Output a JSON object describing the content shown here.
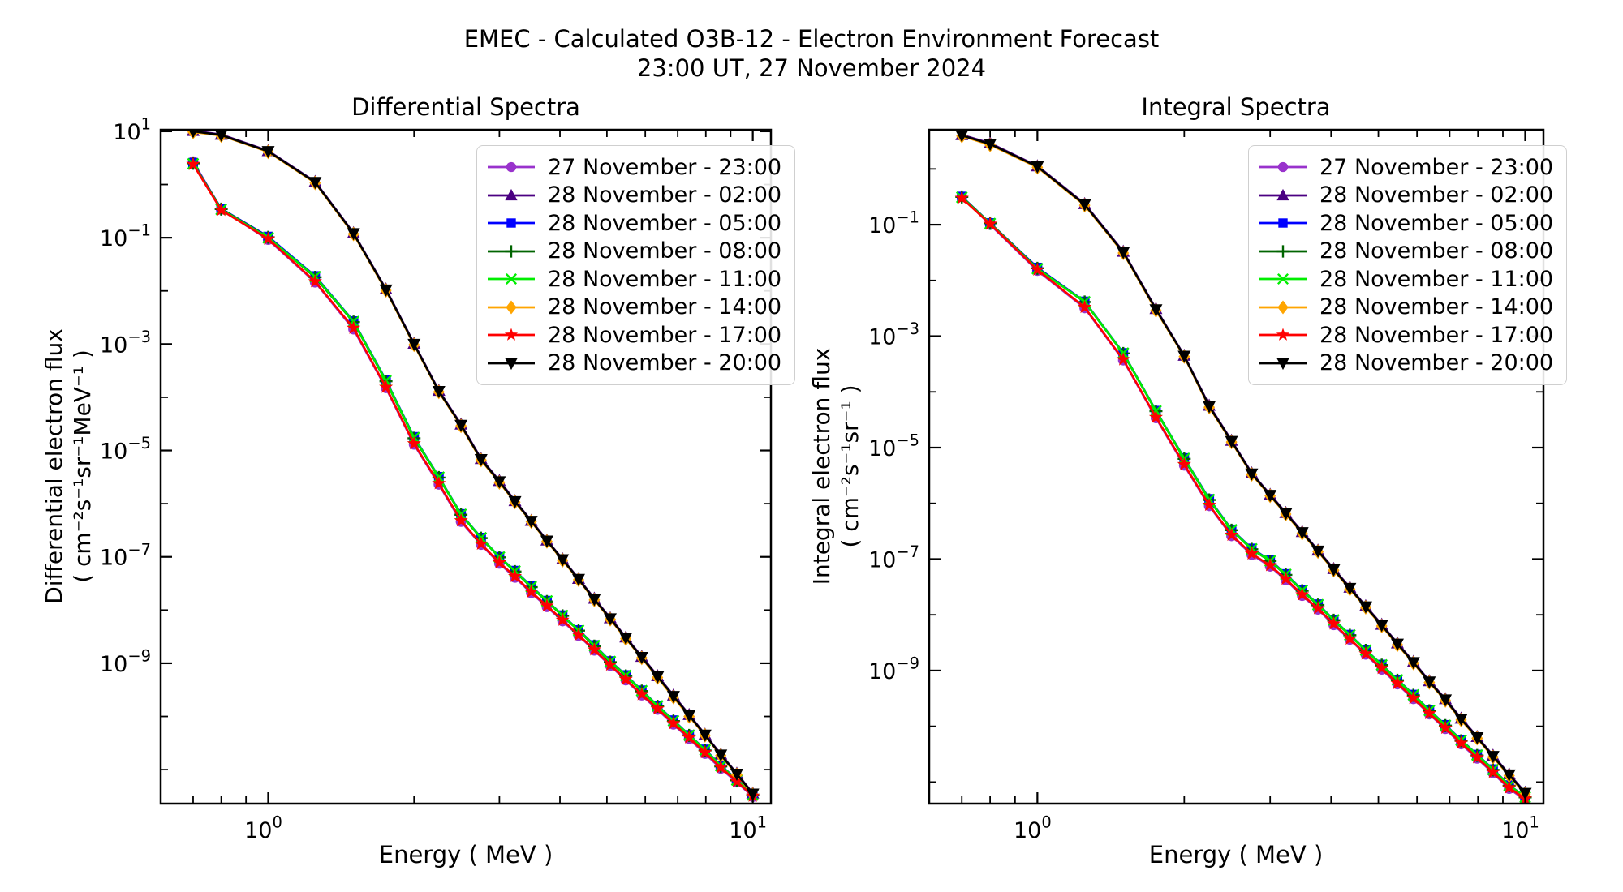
{
  "header": {
    "suptitle_line1": "EMEC - Calculated O3B-12 - Electron Environment Forecast",
    "suptitle_line2": "23:00 UT, 27 November 2024"
  },
  "chart_data": [
    {
      "type": "line",
      "title": "Differential Spectra",
      "xlabel": "Energy ( MeV )",
      "ylabel_line1": "Differential electron flux",
      "ylabel_line2": "( cm⁻²s⁻¹sr⁻¹MeV⁻¹ )",
      "xscale": "log",
      "yscale": "log",
      "grid": false,
      "legend_position": "upper right",
      "xlim": [
        0.6,
        10.9
      ],
      "ylim": [
        2.3e-12,
        10.7
      ],
      "xtick_exponents": [
        0,
        1
      ],
      "xminor_ticks": [
        0.7,
        0.8,
        0.9,
        2,
        3,
        4,
        5,
        6,
        7,
        8,
        9
      ],
      "ytick_exponents": [
        1,
        -1,
        -3,
        -5,
        -7,
        -9
      ],
      "x": [
        0.7,
        0.8,
        1.0,
        1.25,
        1.5,
        1.75,
        2.0,
        2.25,
        2.5,
        2.75,
        3.0,
        3.23,
        3.49,
        3.76,
        4.05,
        4.37,
        4.71,
        5.08,
        5.47,
        5.9,
        6.36,
        6.86,
        7.39,
        7.97,
        8.59,
        9.27,
        10.0
      ],
      "series": [
        {
          "name": "27 November - 23:00",
          "color": "#9932CC",
          "marker": "circle",
          "values": [
            2.7,
            0.34,
            0.092,
            0.0145,
            0.0019,
            0.00015,
            1.3e-05,
            2.3e-06,
            4.6e-07,
            1.7e-07,
            7.5e-08,
            4.1e-08,
            2.1e-08,
            1.15e-08,
            6.2e-09,
            3.3e-09,
            1.75e-09,
            9e-10,
            4.8e-10,
            2.5e-10,
            1.35e-10,
            7.1e-11,
            3.8e-11,
            2e-11,
            1.05e-11,
            5.8e-12,
            3.1e-12
          ]
        },
        {
          "name": "28 November - 02:00",
          "color": "#4B0082",
          "marker": "triangle-up",
          "values": [
            10.3,
            8.7,
            4.3,
            1.13,
            0.123,
            0.0108,
            0.00103,
            0.000134,
            3.1e-05,
            7e-06,
            2.7e-06,
            1.13e-06,
            4.8e-07,
            2.05e-07,
            9.1e-08,
            3.9e-08,
            1.65e-08,
            7.1e-09,
            3.1e-09,
            1.34e-09,
            5.8e-10,
            2.5e-10,
            1.08e-10,
            4.6e-11,
            1.95e-11,
            8.5e-12,
            3.6e-12
          ]
        },
        {
          "name": "28 November - 05:00",
          "color": "#0000FF",
          "marker": "square",
          "values": [
            2.55,
            0.35,
            0.105,
            0.019,
            0.0027,
            0.00021,
            1.8e-05,
            3.2e-06,
            6.4e-07,
            2.3e-07,
            1e-07,
            5.5e-08,
            2.8e-08,
            1.5e-08,
            8e-09,
            4.2e-09,
            2.2e-09,
            1.1e-09,
            6e-10,
            3.1e-10,
            1.6e-10,
            8.5e-11,
            4.5e-11,
            2.4e-11,
            1.2e-11,
            6.5e-12,
            3.4e-12
          ]
        },
        {
          "name": "28 November - 08:00",
          "color": "#006400",
          "marker": "plus",
          "values": [
            2.5,
            0.345,
            0.102,
            0.018,
            0.0026,
            0.0002,
            1.7e-05,
            3.1e-06,
            6.2e-07,
            2.25e-07,
            9.8e-08,
            5.3e-08,
            2.7e-08,
            1.45e-08,
            7.8e-09,
            4.1e-09,
            2.1e-09,
            1.05e-09,
            5.8e-10,
            3e-10,
            1.55e-10,
            8.2e-11,
            4.4e-11,
            2.3e-11,
            1.15e-11,
            6.3e-12,
            3.3e-12
          ]
        },
        {
          "name": "28 November - 11:00",
          "color": "#00EE00",
          "marker": "x",
          "values": [
            2.45,
            0.34,
            0.1,
            0.0185,
            0.00265,
            0.000205,
            1.75e-05,
            3.15e-06,
            6.3e-07,
            2.28e-07,
            9.9e-08,
            5.4e-08,
            2.75e-08,
            1.48e-08,
            7.9e-09,
            4.15e-09,
            2.15e-09,
            1.08e-09,
            5.9e-10,
            3.05e-10,
            1.58e-10,
            8.3e-11,
            4.45e-11,
            2.35e-11,
            1.18e-11,
            6.4e-12,
            3.35e-12
          ]
        },
        {
          "name": "28 November - 14:00",
          "color": "#FFA500",
          "marker": "diamond",
          "values": [
            9.7,
            8.3,
            4.1,
            1.07,
            0.117,
            0.0102,
            0.00097,
            0.000126,
            2.9e-05,
            6.6e-06,
            2.5e-06,
            1.07e-06,
            4.6e-07,
            1.95e-07,
            8.6e-08,
            3.7e-08,
            1.55e-08,
            6.7e-09,
            2.9e-09,
            1.26e-09,
            5.4e-10,
            2.3e-10,
            1e-10,
            4.4e-11,
            1.85e-11,
            8e-12,
            3.4e-12
          ]
        },
        {
          "name": "28 November - 17:00",
          "color": "#FF0000",
          "marker": "star",
          "values": [
            2.4,
            0.33,
            0.095,
            0.015,
            0.002,
            0.000155,
            1.35e-05,
            2.4e-06,
            4.8e-07,
            1.75e-07,
            7.8e-08,
            4.3e-08,
            2.2e-08,
            1.2e-08,
            6.5e-09,
            3.4e-09,
            1.8e-09,
            9.3e-10,
            5e-10,
            2.6e-10,
            1.4e-10,
            7.4e-11,
            4e-11,
            2.1e-11,
            1.1e-11,
            6e-12,
            3.2e-12
          ]
        },
        {
          "name": "28 November - 20:00",
          "color": "#000000",
          "marker": "triangle-down",
          "values": [
            10.0,
            8.5,
            4.2,
            1.1,
            0.12,
            0.0105,
            0.001,
            0.00013,
            3e-05,
            6.8e-06,
            2.6e-06,
            1.1e-06,
            4.7e-07,
            2e-07,
            8.9e-08,
            3.8e-08,
            1.6e-08,
            6.9e-09,
            3e-09,
            1.3e-09,
            5.6e-10,
            2.4e-10,
            1.05e-10,
            4.5e-11,
            1.9e-11,
            8.3e-12,
            3.5e-12
          ]
        }
      ]
    },
    {
      "type": "line",
      "title": "Integral Spectra",
      "xlabel": "Energy ( MeV )",
      "ylabel_line1": "Integral electron flux",
      "ylabel_line2": "( cm⁻²s⁻¹sr⁻¹ )",
      "xscale": "log",
      "yscale": "log",
      "grid": false,
      "legend_position": "upper right",
      "xlim": [
        0.6,
        10.9
      ],
      "ylim": [
        4.1e-12,
        5.05
      ],
      "xtick_exponents": [
        0,
        1
      ],
      "xminor_ticks": [
        0.7,
        0.8,
        0.9,
        2,
        3,
        4,
        5,
        6,
        7,
        8,
        9
      ],
      "ytick_exponents": [
        -1,
        -3,
        -5,
        -7,
        -9
      ],
      "x": [
        0.7,
        0.8,
        1.0,
        1.25,
        1.5,
        1.75,
        2.0,
        2.25,
        2.5,
        2.75,
        3.0,
        3.23,
        3.49,
        3.76,
        4.05,
        4.37,
        4.71,
        5.08,
        5.47,
        5.9,
        6.36,
        6.86,
        7.39,
        7.97,
        8.59,
        9.27,
        10.0
      ],
      "series": [
        {
          "name": "27 November - 23:00",
          "color": "#9932CC",
          "marker": "circle",
          "values": [
            0.315,
            0.1,
            0.015,
            0.0032,
            0.00037,
            3.4e-05,
            4.8e-06,
            9e-07,
            2.6e-07,
            1.2e-07,
            7.4e-08,
            4.2e-08,
            2.2e-08,
            1.25e-08,
            6.6e-09,
            3.6e-09,
            1.95e-09,
            1.05e-09,
            5.7e-10,
            3.1e-10,
            1.65e-10,
            9e-11,
            4.8e-11,
            2.65e-11,
            1.45e-11,
            7.6e-12,
            4.8e-12
          ]
        },
        {
          "name": "28 November - 02:00",
          "color": "#4B0082",
          "marker": "triangle-up",
          "values": [
            4.1,
            2.9,
            1.13,
            0.237,
            0.033,
            0.0031,
            0.00045,
            5.7e-05,
            1.34e-05,
            3.5e-06,
            1.44e-06,
            6.8e-07,
            3.1e-07,
            1.44e-07,
            6.7e-08,
            3.1e-08,
            1.44e-08,
            6.7e-09,
            3.1e-09,
            1.44e-09,
            6.5e-10,
            3.1e-10,
            1.39e-10,
            6.5e-11,
            3e-11,
            1.39e-11,
            6.5e-12
          ]
        },
        {
          "name": "28 November - 05:00",
          "color": "#0000FF",
          "marker": "square",
          "values": [
            0.32,
            0.107,
            0.017,
            0.0042,
            0.0005,
            4.6e-05,
            6.5e-06,
            1.2e-06,
            3.4e-07,
            1.55e-07,
            9.5e-08,
            5.4e-08,
            2.8e-08,
            1.55e-08,
            8.2e-09,
            4.4e-09,
            2.35e-09,
            1.28e-09,
            6.9e-10,
            3.7e-10,
            1.95e-10,
            1.06e-10,
            5.7e-11,
            3.1e-11,
            1.7e-11,
            8.8e-12,
            5.4e-12
          ]
        },
        {
          "name": "28 November - 08:00",
          "color": "#006400",
          "marker": "plus",
          "values": [
            0.315,
            0.106,
            0.0165,
            0.0041,
            0.00049,
            4.5e-05,
            6.3e-06,
            1.15e-06,
            3.3e-07,
            1.5e-07,
            9.2e-08,
            5.2e-08,
            2.7e-08,
            1.5e-08,
            8e-09,
            4.3e-09,
            2.3e-09,
            1.25e-09,
            6.7e-10,
            3.6e-10,
            1.9e-10,
            1.03e-10,
            5.5e-11,
            3e-11,
            1.65e-11,
            8.6e-12,
            5.3e-12
          ]
        },
        {
          "name": "28 November - 11:00",
          "color": "#00EE00",
          "marker": "x",
          "values": [
            0.31,
            0.105,
            0.0162,
            0.00415,
            0.000495,
            4.55e-05,
            6.4e-06,
            1.17e-06,
            3.35e-07,
            1.52e-07,
            9.3e-08,
            5.3e-08,
            2.75e-08,
            1.52e-08,
            8.1e-09,
            4.35e-09,
            2.32e-09,
            1.26e-09,
            6.8e-10,
            3.65e-10,
            1.92e-10,
            1.04e-10,
            5.6e-11,
            3.05e-11,
            1.67e-11,
            8.7e-12,
            5.35e-12
          ]
        },
        {
          "name": "28 November - 14:00",
          "color": "#FFA500",
          "marker": "diamond",
          "values": [
            3.9,
            2.7,
            1.07,
            0.223,
            0.031,
            0.0029,
            0.00043,
            5.3e-05,
            1.26e-05,
            3.3e-06,
            1.36e-06,
            6.4e-07,
            2.9e-07,
            1.36e-07,
            6.3e-08,
            2.9e-08,
            1.36e-08,
            6.3e-09,
            2.9e-09,
            1.36e-09,
            6.1e-10,
            2.9e-10,
            1.3e-10,
            6.1e-11,
            2.8e-11,
            1.3e-11,
            6.1e-12
          ]
        },
        {
          "name": "28 November - 17:00",
          "color": "#FF0000",
          "marker": "star",
          "values": [
            0.3,
            0.103,
            0.0155,
            0.0033,
            0.00038,
            3.5e-05,
            5e-06,
            9.3e-07,
            2.7e-07,
            1.25e-07,
            7.7e-08,
            4.4e-08,
            2.3e-08,
            1.3e-08,
            6.9e-09,
            3.7e-09,
            2e-09,
            1.1e-09,
            5.9e-10,
            3.2e-10,
            1.7e-10,
            9.3e-11,
            5e-11,
            2.75e-11,
            1.5e-11,
            7.9e-12,
            5e-12
          ]
        },
        {
          "name": "28 November - 20:00",
          "color": "#000000",
          "marker": "triangle-down",
          "values": [
            4.0,
            2.8,
            1.1,
            0.23,
            0.032,
            0.003,
            0.00044,
            5.5e-05,
            1.3e-05,
            3.4e-06,
            1.4e-06,
            6.6e-07,
            3e-07,
            1.4e-07,
            6.5e-08,
            3e-08,
            1.4e-08,
            6.5e-09,
            3e-09,
            1.4e-09,
            6.3e-10,
            3e-10,
            1.35e-10,
            6.3e-11,
            2.9e-11,
            1.35e-11,
            6.3e-12
          ]
        }
      ]
    }
  ]
}
